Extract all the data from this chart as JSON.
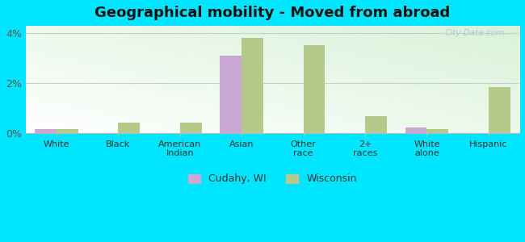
{
  "title": "Geographical mobility - Moved from abroad",
  "categories": [
    "White",
    "Black",
    "American\nIndian",
    "Asian",
    "Other\nrace",
    "2+\nraces",
    "White\nalone",
    "Hispanic"
  ],
  "cudahy": [
    0.15,
    0.0,
    0.0,
    3.1,
    0.0,
    0.0,
    0.22,
    0.0
  ],
  "wisconsin": [
    0.15,
    0.42,
    0.42,
    3.82,
    3.52,
    0.65,
    0.14,
    1.85
  ],
  "cudahy_color": "#c9a8d4",
  "wisconsin_color": "#b5c98a",
  "outer_bg": "#00e5ff",
  "title_fontsize": 13,
  "ylim": [
    0,
    4.3
  ],
  "yticks": [
    0,
    2,
    4
  ],
  "ytick_labels": [
    "0%",
    "2%",
    "4%"
  ],
  "bar_width": 0.35,
  "legend_cudahy": "Cudahy, WI",
  "legend_wisconsin": "Wisconsin",
  "watermark": "City-Data.com"
}
